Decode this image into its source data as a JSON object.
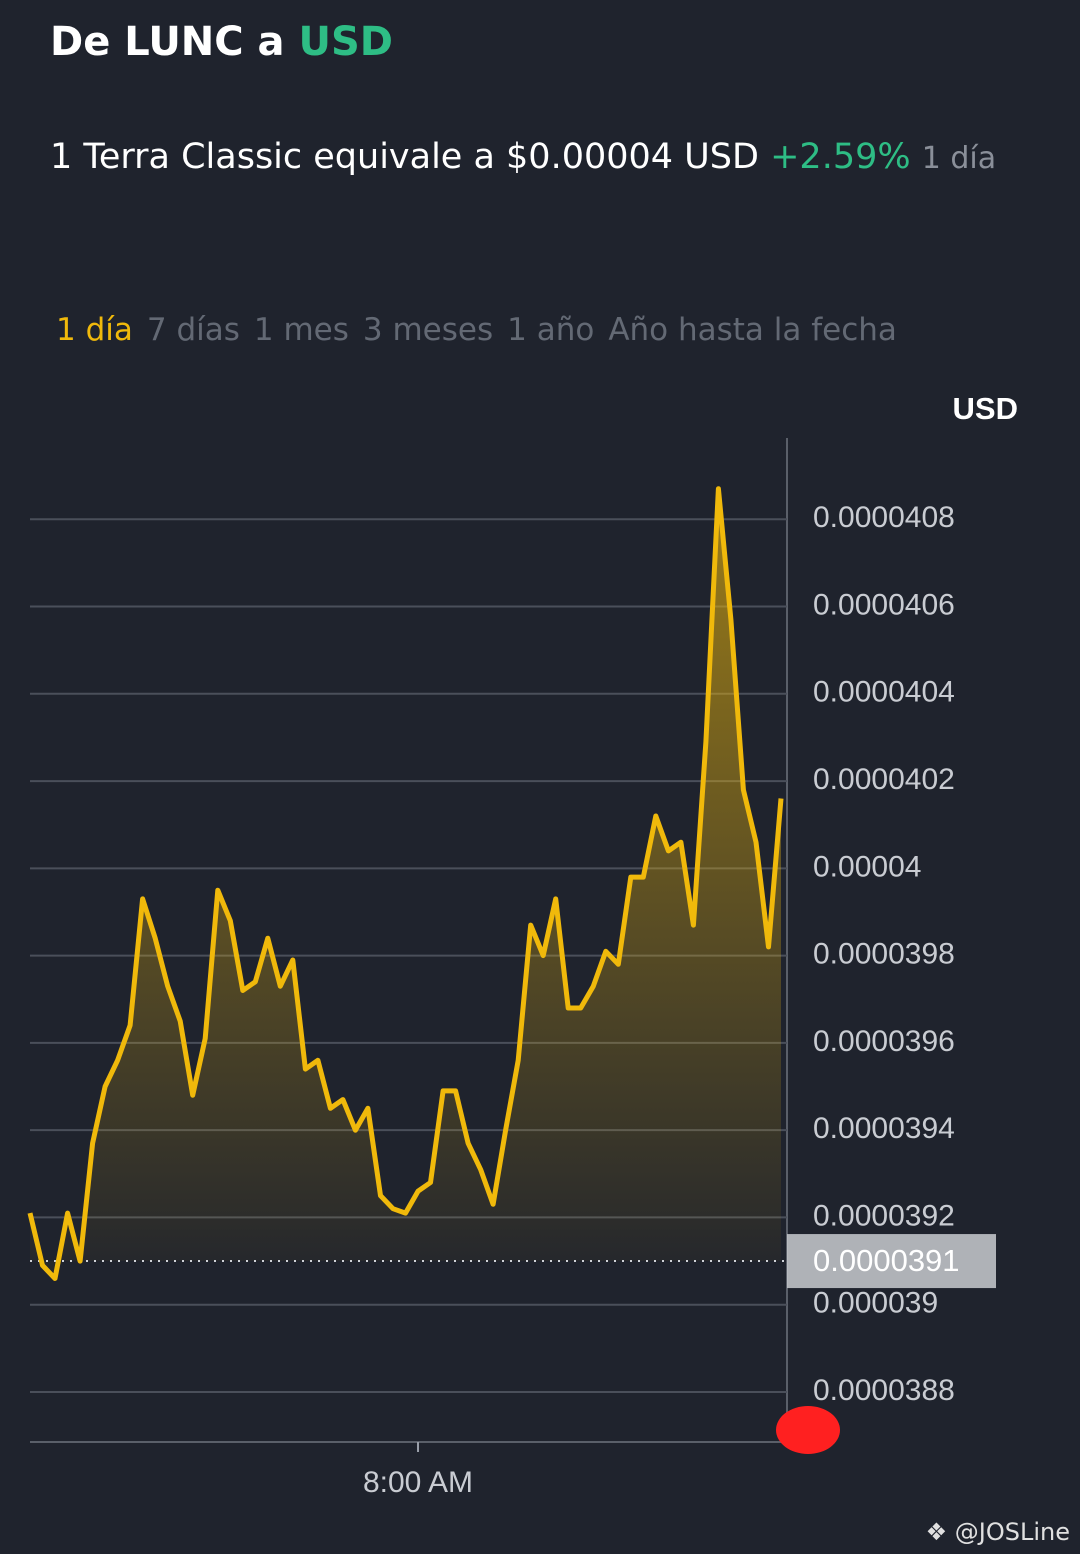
{
  "header": {
    "title_prefix": "De LUNC a",
    "title_currency": "USD",
    "rate_text": "1 Terra Classic equivale a $0.00004 USD",
    "change": "+2.59%",
    "period": "1 día"
  },
  "tabs": [
    "1 día",
    "7 días",
    "1 mes",
    "3 meses",
    "1 año",
    "Año hasta la fecha"
  ],
  "active_tab": 0,
  "watermark": "@JOSLine",
  "chart_data": {
    "type": "line",
    "y_axis_label": "USD",
    "color": "#f0b90b",
    "area": true,
    "values": [
      3.921e-05,
      3.909e-05,
      3.906e-05,
      3.921e-05,
      3.91e-05,
      3.937e-05,
      3.95e-05,
      3.956e-05,
      3.964e-05,
      3.993e-05,
      3.984e-05,
      3.973e-05,
      3.965e-05,
      3.948e-05,
      3.961e-05,
      3.995e-05,
      3.988e-05,
      3.972e-05,
      3.974e-05,
      3.984e-05,
      3.973e-05,
      3.979e-05,
      3.954e-05,
      3.956e-05,
      3.945e-05,
      3.947e-05,
      3.94e-05,
      3.945e-05,
      3.925e-05,
      3.922e-05,
      3.921e-05,
      3.926e-05,
      3.928e-05,
      3.949e-05,
      3.949e-05,
      3.937e-05,
      3.931e-05,
      3.923e-05,
      3.94e-05,
      3.956e-05,
      3.987e-05,
      3.98e-05,
      3.993e-05,
      3.968e-05,
      3.968e-05,
      3.973e-05,
      3.981e-05,
      3.978e-05,
      3.998e-05,
      3.998e-05,
      4.012e-05,
      4.004e-05,
      4.006e-05,
      3.987e-05,
      4.029e-05,
      4.087e-05,
      4.057e-05,
      4.018e-05,
      4.006e-05,
      3.982e-05,
      4.016e-05
    ],
    "last_value": 3.91e-05,
    "xlim": [
      0,
      60
    ],
    "xticks": [
      {
        "value": 31,
        "label": "8:00 AM"
      }
    ],
    "ylim": [
      3.87e-05,
      4.1e-05
    ],
    "yticks": [
      3.88e-05,
      3.9e-05,
      3.92e-05,
      3.94e-05,
      3.96e-05,
      3.98e-05,
      4e-05,
      4.02e-05,
      4.04e-05,
      4.06e-05,
      4.08e-05
    ],
    "grid": true
  }
}
